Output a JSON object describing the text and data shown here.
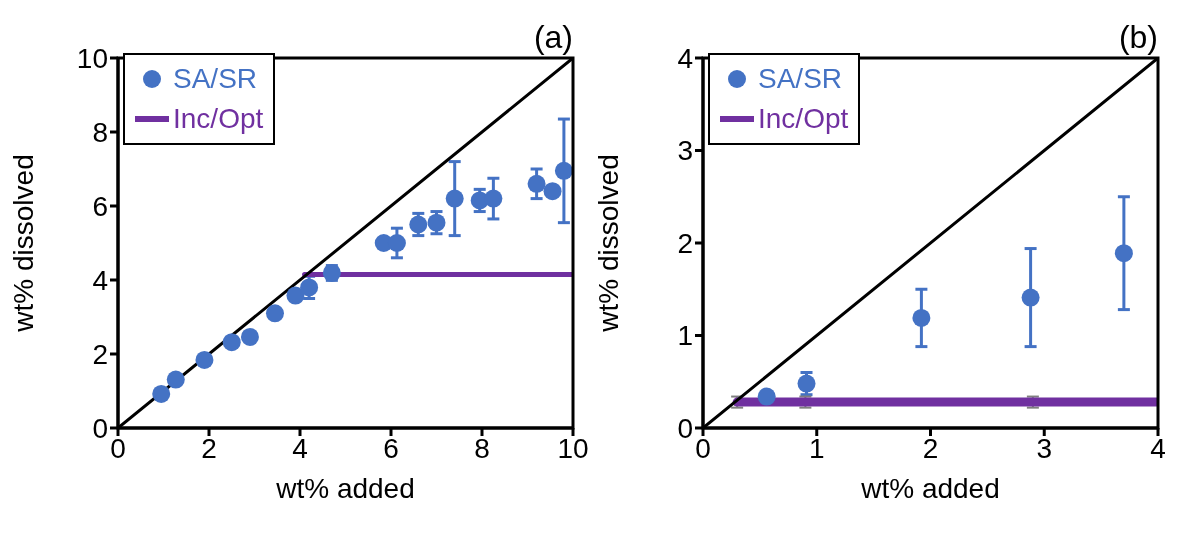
{
  "chart_data": [
    {
      "type": "scatter",
      "title": "(a)",
      "xlabel": "wt% added",
      "ylabel": "wt% dissolved",
      "xlim": [
        0,
        10
      ],
      "xticks": [
        0,
        2,
        4,
        6,
        8,
        10
      ],
      "ylim": [
        0,
        10
      ],
      "yticks": [
        0,
        2,
        4,
        6,
        8,
        10
      ],
      "grid": false,
      "legend": "top left",
      "series": [
        {
          "name": "SA/SR",
          "marker": "circle",
          "color": "#4472c4",
          "x": [
            0.95,
            1.27,
            1.9,
            2.5,
            2.9,
            3.45,
            3.9,
            4.2,
            4.7,
            5.84,
            6.13,
            6.6,
            7.0,
            7.4,
            7.95,
            8.25,
            9.2,
            9.55,
            9.8
          ],
          "values": [
            0.92,
            1.31,
            1.84,
            2.32,
            2.46,
            3.1,
            3.58,
            3.8,
            4.19,
            5.0,
            5.0,
            5.5,
            5.55,
            6.2,
            6.15,
            6.2,
            6.6,
            6.4,
            6.95
          ],
          "errors": [
            null,
            null,
            null,
            null,
            null,
            null,
            null,
            0.3,
            0.2,
            null,
            0.4,
            0.3,
            0.3,
            1.0,
            0.3,
            0.55,
            0.4,
            null,
            1.4
          ]
        },
        {
          "name": "Inc/Opt",
          "type": "line",
          "marker": "none",
          "color": "#7030a0",
          "x": [
            4.1,
            10
          ],
          "values": [
            4.15,
            4.15
          ]
        },
        {
          "type": "line",
          "marker": "none",
          "color": "#000000",
          "x": [
            0,
            10
          ],
          "values": [
            0,
            10
          ]
        }
      ]
    },
    {
      "type": "scatter",
      "title": "(b)",
      "xlabel": "wt% added",
      "ylabel": "wt% dissolved",
      "xlim": [
        0,
        4
      ],
      "xticks": [
        0,
        1,
        2,
        3,
        4
      ],
      "ylim": [
        0,
        4
      ],
      "yticks": [
        0,
        1,
        2,
        3,
        4
      ],
      "grid": false,
      "legend": "top left",
      "series": [
        {
          "name": "SA/SR",
          "marker": "circle",
          "color": "#4472c4",
          "x": [
            0.56,
            0.91,
            1.92,
            2.88,
            3.7
          ],
          "values": [
            0.34,
            0.48,
            1.19,
            1.41,
            1.89
          ],
          "errors": [
            null,
            0.12,
            0.31,
            0.53,
            0.61
          ]
        },
        {
          "name": "Inc/Opt",
          "type": "line",
          "marker": "none",
          "color": "#7030a0",
          "x": [
            0.3,
            0.9,
            2.9,
            4
          ],
          "values": [
            0.28,
            0.28,
            0.28,
            0.28
          ],
          "errors": [
            0.06,
            0.06,
            0.06,
            null
          ]
        },
        {
          "type": "line",
          "marker": "none",
          "color": "#000000",
          "x": [
            0,
            4
          ],
          "values": [
            0,
            4
          ]
        }
      ]
    }
  ]
}
